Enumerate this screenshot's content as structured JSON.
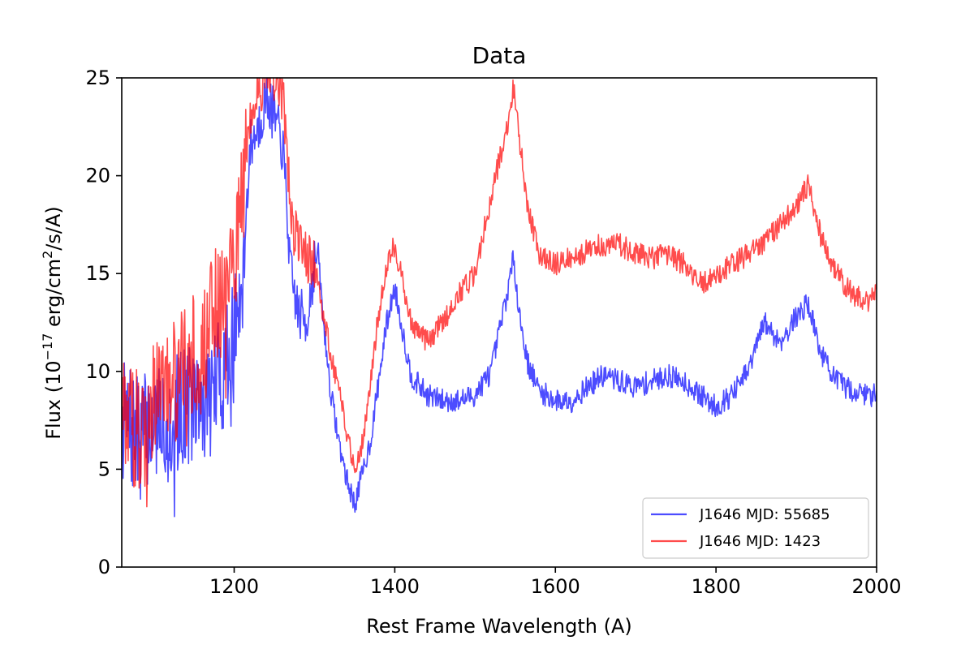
{
  "chart_data": {
    "type": "line",
    "title": "Data",
    "xlabel": "Rest Frame Wavelength (A)",
    "ylabel_prefix": "Flux (10",
    "ylabel_exp": "−17",
    "ylabel_mid": " erg/cm",
    "ylabel_sq": "2",
    "ylabel_suffix": "/s/A)",
    "xlim": [
      1060,
      2000
    ],
    "ylim": [
      0,
      25
    ],
    "xticks": [
      1200,
      1400,
      1600,
      1800,
      2000
    ],
    "yticks": [
      0,
      5,
      10,
      15,
      20,
      25
    ],
    "legend_position": "lower-right",
    "series": [
      {
        "name": "J1646 MJD: 55685",
        "color": "#0000ff",
        "anchors": [
          [
            1060,
            7.5
          ],
          [
            1080,
            6.5
          ],
          [
            1100,
            7.5
          ],
          [
            1120,
            7.5
          ],
          [
            1140,
            8.5
          ],
          [
            1160,
            8.0
          ],
          [
            1180,
            9.5
          ],
          [
            1200,
            11.5
          ],
          [
            1210,
            15.0
          ],
          [
            1220,
            21.5
          ],
          [
            1230,
            22.5
          ],
          [
            1240,
            24.0
          ],
          [
            1250,
            23.0
          ],
          [
            1260,
            21.5
          ],
          [
            1265,
            19.0
          ],
          [
            1270,
            15.0
          ],
          [
            1280,
            13.0
          ],
          [
            1290,
            12.5
          ],
          [
            1300,
            15.5
          ],
          [
            1305,
            16.0
          ],
          [
            1310,
            13.0
          ],
          [
            1320,
            9.0
          ],
          [
            1330,
            6.5
          ],
          [
            1340,
            4.5
          ],
          [
            1350,
            3.2
          ],
          [
            1360,
            4.8
          ],
          [
            1370,
            6.5
          ],
          [
            1380,
            9.5
          ],
          [
            1390,
            12.5
          ],
          [
            1400,
            14.3
          ],
          [
            1410,
            12.0
          ],
          [
            1420,
            9.8
          ],
          [
            1440,
            8.8
          ],
          [
            1460,
            8.5
          ],
          [
            1480,
            8.5
          ],
          [
            1500,
            8.8
          ],
          [
            1520,
            10.0
          ],
          [
            1540,
            14.0
          ],
          [
            1548,
            15.8
          ],
          [
            1555,
            13.0
          ],
          [
            1565,
            10.5
          ],
          [
            1580,
            9.0
          ],
          [
            1600,
            8.5
          ],
          [
            1620,
            8.5
          ],
          [
            1640,
            9.2
          ],
          [
            1660,
            9.8
          ],
          [
            1680,
            9.5
          ],
          [
            1700,
            9.2
          ],
          [
            1720,
            9.5
          ],
          [
            1740,
            9.8
          ],
          [
            1760,
            9.5
          ],
          [
            1780,
            8.8
          ],
          [
            1800,
            8.2
          ],
          [
            1820,
            8.8
          ],
          [
            1840,
            10.0
          ],
          [
            1860,
            12.5
          ],
          [
            1880,
            11.5
          ],
          [
            1900,
            12.8
          ],
          [
            1915,
            13.5
          ],
          [
            1930,
            11.0
          ],
          [
            1950,
            9.5
          ],
          [
            1970,
            9.0
          ],
          [
            1990,
            8.8
          ],
          [
            2000,
            8.8
          ]
        ]
      },
      {
        "name": "J1646 MJD: 1423",
        "color": "#ff0000",
        "anchors": [
          [
            1060,
            8.0
          ],
          [
            1080,
            7.0
          ],
          [
            1100,
            8.5
          ],
          [
            1120,
            9.0
          ],
          [
            1140,
            10.5
          ],
          [
            1160,
            11.0
          ],
          [
            1180,
            13.5
          ],
          [
            1200,
            16.0
          ],
          [
            1210,
            19.0
          ],
          [
            1220,
            23.0
          ],
          [
            1230,
            24.5
          ],
          [
            1240,
            25.0
          ],
          [
            1250,
            25.0
          ],
          [
            1260,
            24.0
          ],
          [
            1265,
            22.0
          ],
          [
            1270,
            18.0
          ],
          [
            1280,
            16.5
          ],
          [
            1290,
            16.0
          ],
          [
            1300,
            15.5
          ],
          [
            1310,
            13.0
          ],
          [
            1320,
            11.0
          ],
          [
            1330,
            9.0
          ],
          [
            1340,
            7.0
          ],
          [
            1350,
            5.0
          ],
          [
            1360,
            6.5
          ],
          [
            1370,
            9.5
          ],
          [
            1380,
            13.0
          ],
          [
            1390,
            15.5
          ],
          [
            1400,
            16.5
          ],
          [
            1410,
            14.5
          ],
          [
            1420,
            12.5
          ],
          [
            1440,
            11.5
          ],
          [
            1460,
            12.5
          ],
          [
            1480,
            14.0
          ],
          [
            1500,
            15.0
          ],
          [
            1520,
            19.0
          ],
          [
            1540,
            22.5
          ],
          [
            1548,
            24.5
          ],
          [
            1555,
            22.0
          ],
          [
            1565,
            18.5
          ],
          [
            1580,
            16.0
          ],
          [
            1600,
            15.5
          ],
          [
            1620,
            15.8
          ],
          [
            1640,
            16.2
          ],
          [
            1660,
            16.5
          ],
          [
            1680,
            16.5
          ],
          [
            1700,
            16.0
          ],
          [
            1720,
            15.8
          ],
          [
            1740,
            16.0
          ],
          [
            1760,
            15.5
          ],
          [
            1780,
            14.5
          ],
          [
            1800,
            14.8
          ],
          [
            1820,
            15.5
          ],
          [
            1840,
            16.0
          ],
          [
            1860,
            16.5
          ],
          [
            1880,
            17.5
          ],
          [
            1900,
            18.5
          ],
          [
            1915,
            19.5
          ],
          [
            1930,
            17.0
          ],
          [
            1950,
            15.0
          ],
          [
            1970,
            14.0
          ],
          [
            1990,
            13.5
          ],
          [
            2000,
            14.0
          ]
        ]
      }
    ]
  }
}
